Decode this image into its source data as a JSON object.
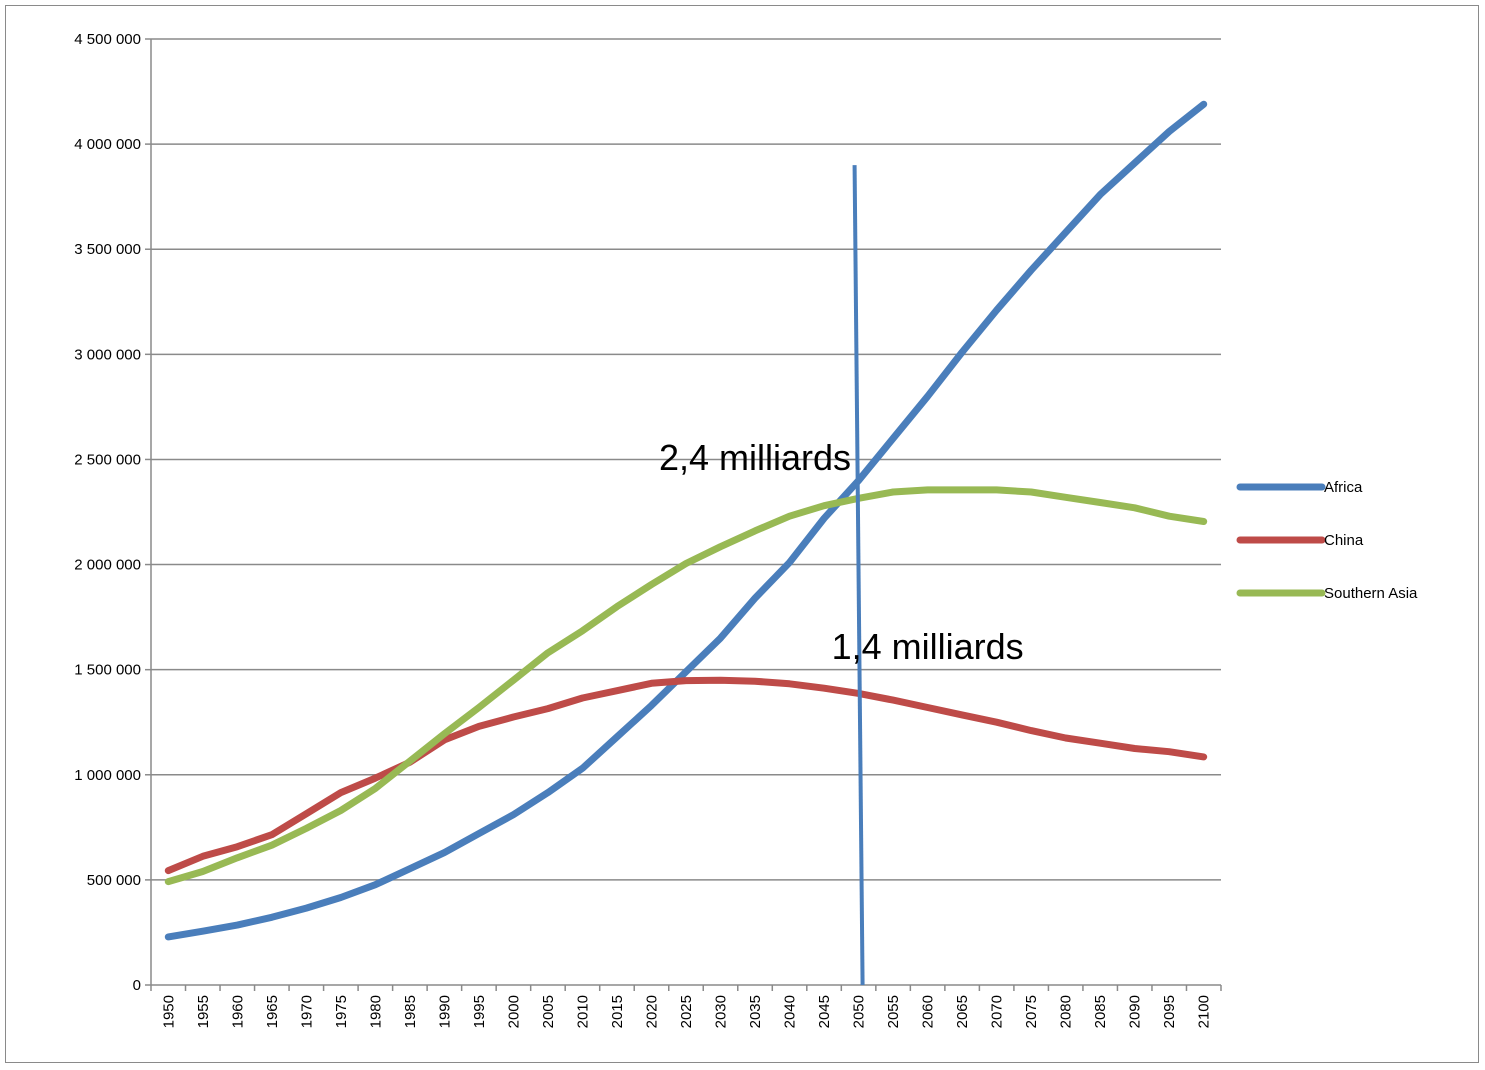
{
  "chart_data": {
    "type": "line",
    "title": "",
    "xlabel": "",
    "ylabel": "",
    "categories": [
      "1950",
      "1955",
      "1960",
      "1965",
      "1970",
      "1975",
      "1980",
      "1985",
      "1990",
      "1995",
      "2000",
      "2005",
      "2010",
      "2015",
      "2020",
      "2025",
      "2030",
      "2035",
      "2040",
      "2045",
      "2050",
      "2055",
      "2060",
      "2065",
      "2070",
      "2075",
      "2080",
      "2085",
      "2090",
      "2095",
      "2100"
    ],
    "y_tick_labels": [
      "0",
      "500 000",
      "1 000 000",
      "1 500 000",
      "2 000 000",
      "2 500 000",
      "3 000 000",
      "3 500 000",
      "4 000 000",
      "4 500 000"
    ],
    "ylim": [
      0,
      4500000
    ],
    "y_tick_step": 500000,
    "grid": true,
    "legend_position": "right",
    "series": [
      {
        "name": "Africa",
        "color": "#4a7ebb",
        "values": [
          229000,
          256000,
          285000,
          322000,
          366000,
          416000,
          477000,
          553000,
          630000,
          720000,
          810000,
          915000,
          1031000,
          1180000,
          1330000,
          1490000,
          1650000,
          1840000,
          2010000,
          2220000,
          2400000,
          2600000,
          2800000,
          3010000,
          3210000,
          3400000,
          3580000,
          3760000,
          3910000,
          4060000,
          4190000
        ]
      },
      {
        "name": "China",
        "color": "#be4b48",
        "values": [
          544000,
          612000,
          658000,
          715000,
          815000,
          915000,
          984000,
          1060000,
          1166000,
          1230000,
          1275000,
          1315000,
          1365000,
          1400000,
          1435000,
          1448000,
          1450000,
          1445000,
          1433000,
          1412000,
          1387000,
          1355000,
          1320000,
          1285000,
          1250000,
          1210000,
          1175000,
          1150000,
          1125000,
          1110000,
          1085000
        ]
      },
      {
        "name": "Southern Asia",
        "color": "#98b954",
        "values": [
          492000,
          540000,
          605000,
          665000,
          745000,
          830000,
          935000,
          1065000,
          1195000,
          1320000,
          1450000,
          1580000,
          1685000,
          1800000,
          1905000,
          2005000,
          2085000,
          2160000,
          2230000,
          2280000,
          2315000,
          2345000,
          2355000,
          2355000,
          2355000,
          2345000,
          2320000,
          2295000,
          2270000,
          2230000,
          2205000
        ]
      }
    ],
    "annotations": [
      {
        "text": "2,4 milliards",
        "category": "2035",
        "value": 2450000
      },
      {
        "text": "1,4 milliards",
        "category": "2060",
        "value": 1550000
      }
    ],
    "reference_line": {
      "color": "#4a7ebb",
      "category": "2050",
      "y_start": 3900000,
      "y_end": 0
    }
  }
}
